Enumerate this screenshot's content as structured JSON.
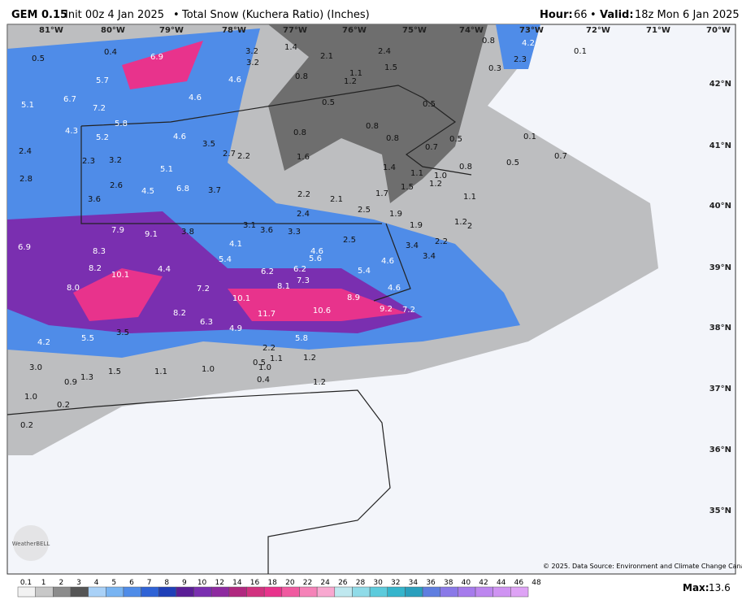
{
  "header": {
    "model": "GEM 0.15",
    "init": "Init 00z 4 Jan 2025",
    "title": "Total Snow (Kuchera Ratio) (Inches)",
    "hour_label": "Hour:",
    "hour": "66",
    "valid_label": "Valid:",
    "valid": "18z Mon 6 Jan 2025"
  },
  "map": {
    "lon_labels": [
      "81°W",
      "80°W",
      "79°W",
      "78°W",
      "77°W",
      "76°W",
      "75°W",
      "74°W",
      "73°W",
      "72°W",
      "71°W",
      "70°W"
    ],
    "lat_labels": [
      "42°N",
      "41°N",
      "40°N",
      "39°N",
      "38°N",
      "37°N",
      "36°N",
      "35°N"
    ],
    "snow_labels": [
      "0.5",
      "0.4",
      "6.9",
      "3.2",
      "3.2",
      "1.4",
      "2.1",
      "2.4",
      "1.5",
      "0.8",
      "4.2",
      "2.3",
      "0.3",
      "0.1",
      "5.7",
      "4.6",
      "0.8",
      "1.1",
      "1.2",
      "5.1",
      "6.7",
      "7.2",
      "4.6",
      "0.5",
      "0.5",
      "4.3",
      "5.8",
      "0.8",
      "5.2",
      "4.6",
      "3.5",
      "0.8",
      "0.8",
      "0.5",
      "0.7",
      "0.1",
      "0.7",
      "0.5",
      "2.4",
      "2.3",
      "3.2",
      "2.7",
      "2.2",
      "1.6",
      "0.8",
      "2.8",
      "5.1",
      "1.4",
      "1.1",
      "1.0",
      "1.2",
      "2.6",
      "4.5",
      "6.8",
      "3.7",
      "2.2",
      "1.5",
      "1.7",
      "3.6",
      "2.1",
      "1.1",
      "2.5",
      "2.4",
      "1.9",
      "1.2",
      "1.9",
      "2",
      "7.9",
      "9.1",
      "3.8",
      "3.1",
      "3.6",
      "3.3",
      "6.9",
      "4.1",
      "2.5",
      "2.2",
      "3.4",
      "8.3",
      "5.4",
      "4.6",
      "5.6",
      "3.4",
      "4.6",
      "8.2",
      "10.1",
      "4.4",
      "6.2",
      "6.2",
      "5.4",
      "7.3",
      "8.1",
      "8.0",
      "7.2",
      "4.6",
      "10.1",
      "8.9",
      "9.2",
      "7.2",
      "10.6",
      "11.7",
      "8.2",
      "6.3",
      "4.9",
      "3.5",
      "5.5",
      "4.2",
      "5.8",
      "2.2",
      "1.1",
      "1.2",
      "0.5",
      "1.0",
      "1.0",
      "1.1",
      "1.5",
      "1.3",
      "0.9",
      "3.0",
      "0.4",
      "1.2",
      "1.0",
      "0.2",
      "0.2"
    ],
    "copyright": "© 2025. Data Source: Environment and Climate Change Canada.",
    "logo": "WeatherBELL"
  },
  "legend": {
    "labels": [
      "0.1",
      "1",
      "2",
      "3",
      "4",
      "5",
      "6",
      "7",
      "8",
      "9",
      "10",
      "12",
      "14",
      "16",
      "18",
      "20",
      "22",
      "24",
      "26",
      "28",
      "30",
      "32",
      "34",
      "36",
      "38",
      "40",
      "42",
      "44",
      "46",
      "48"
    ],
    "max_label": "Max:",
    "max": "13.6"
  }
}
